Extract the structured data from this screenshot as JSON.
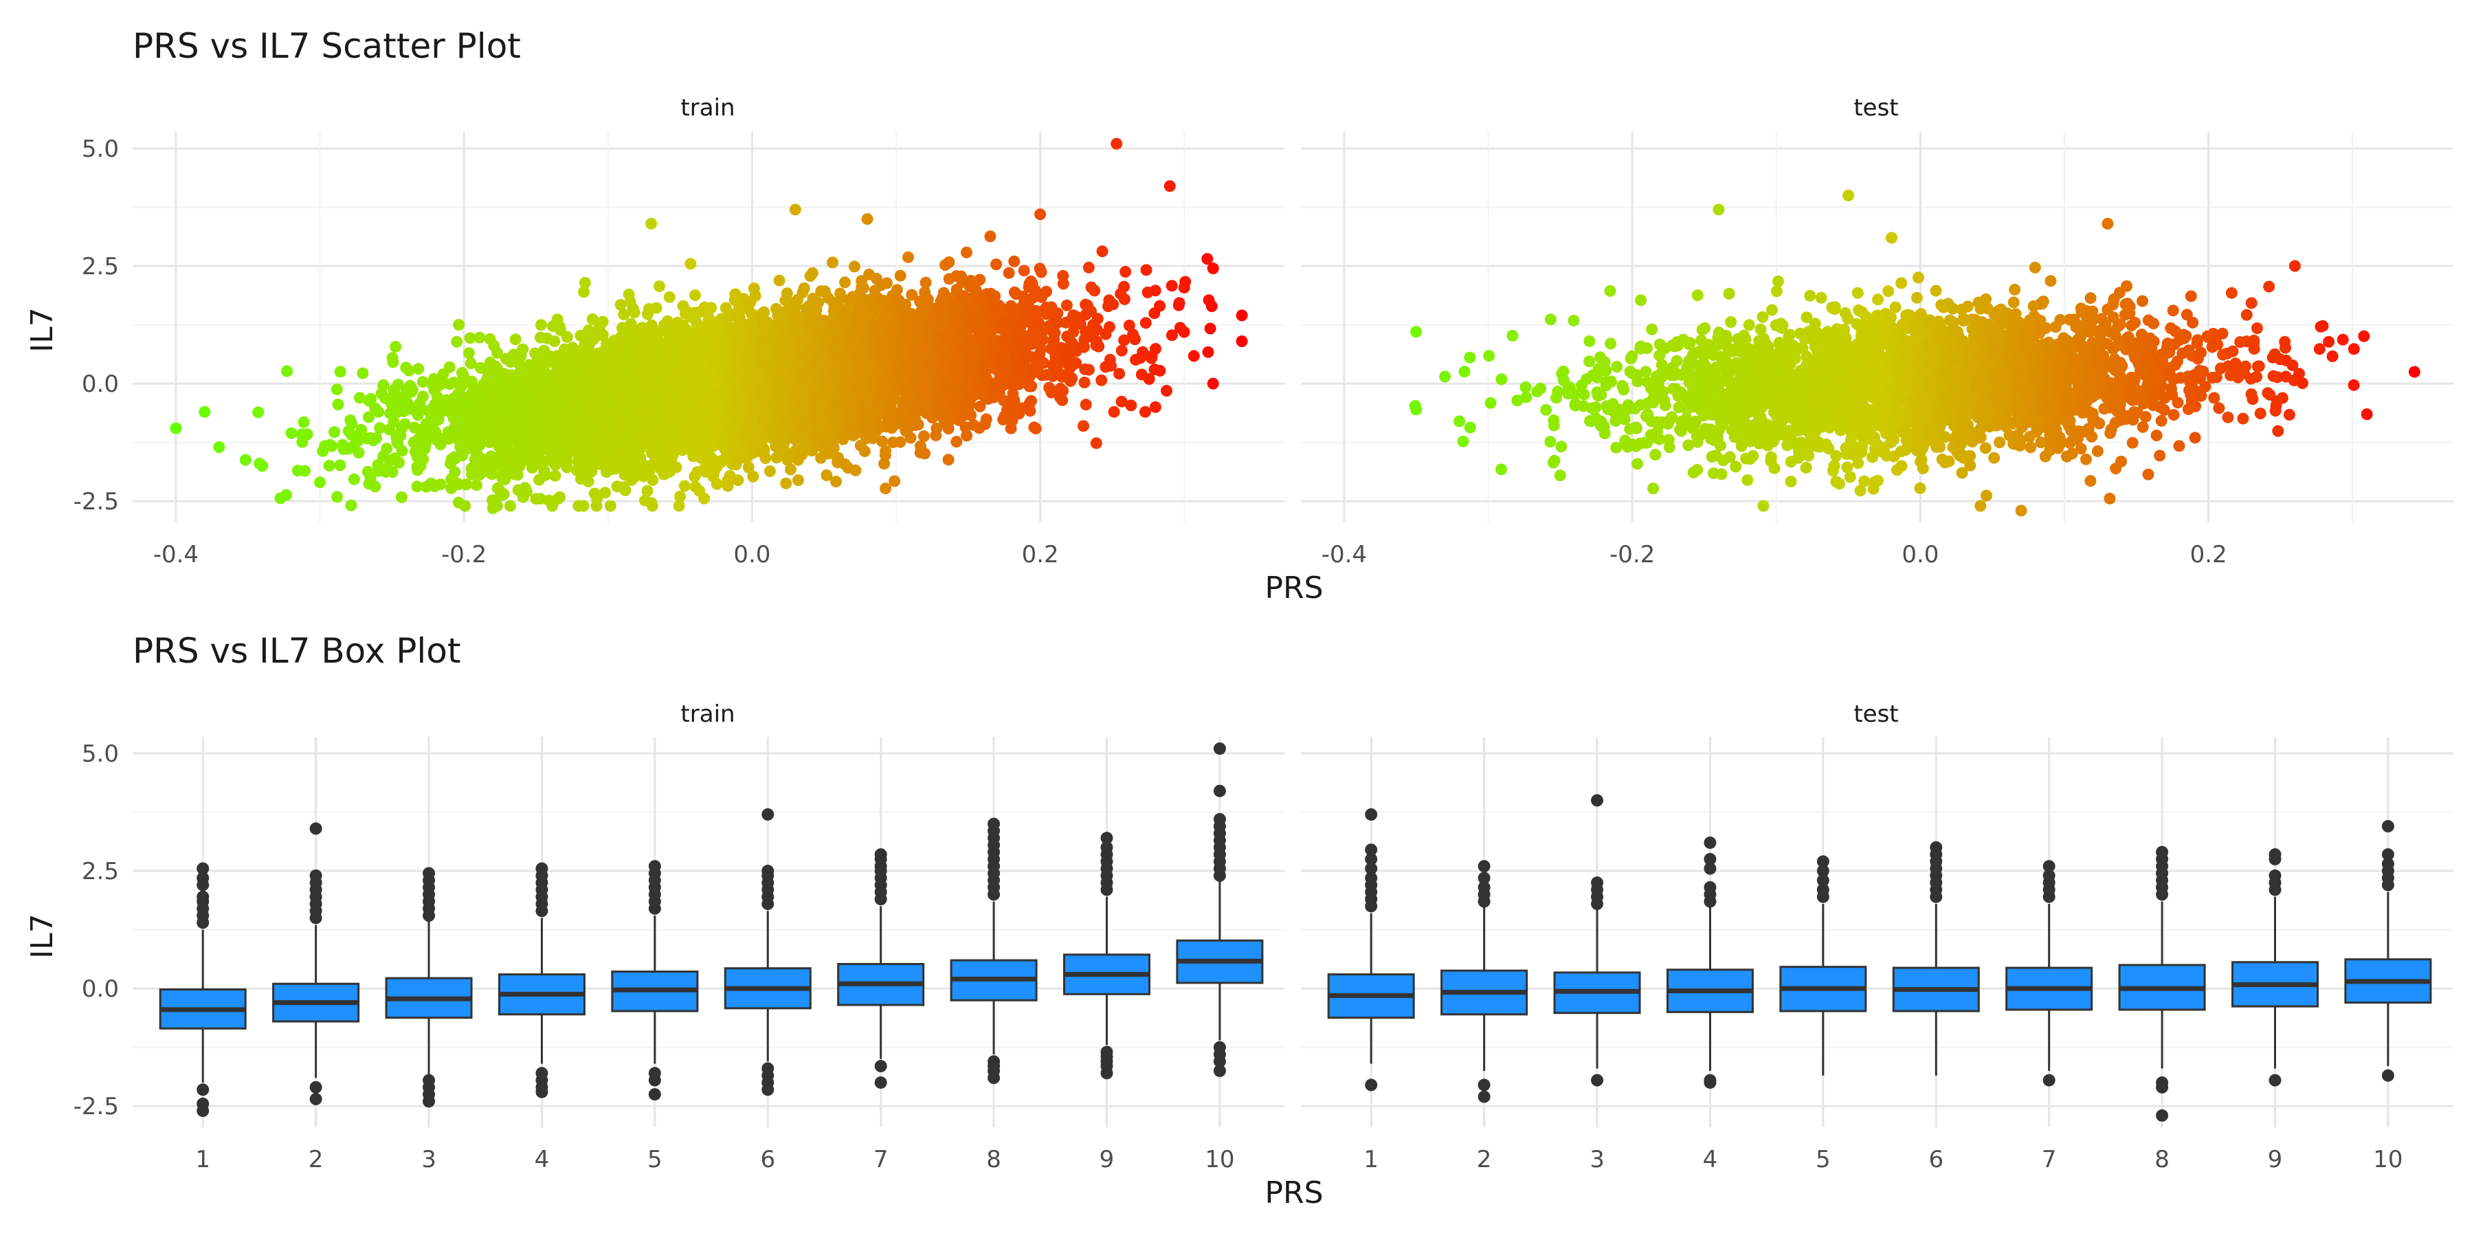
{
  "chart_data": [
    {
      "type": "scatter",
      "title": "PRS vs IL7 Scatter Plot",
      "xlabel": "PRS",
      "ylabel": "IL7",
      "facets": [
        "train",
        "test"
      ],
      "xlim": [
        -0.43,
        0.37
      ],
      "ylim": [
        -2.95,
        5.35
      ],
      "x_ticks": [
        -0.4,
        -0.2,
        0.0,
        0.2
      ],
      "x_tick_labels": [
        "-0.4",
        "-0.2",
        "0.0",
        "0.2"
      ],
      "y_ticks": [
        -2.5,
        0.0,
        2.5,
        5.0
      ],
      "y_tick_labels": [
        "-2.5",
        "0.0",
        "2.5",
        "5.0"
      ],
      "grid": true,
      "legend": "none",
      "color_scale": {
        "low": "#66ff00",
        "mid": "#cccc00",
        "high": "#ff0000",
        "mapped_to": "PRS"
      },
      "series": [
        {
          "name": "train",
          "n_points_approx": 8000,
          "trend": {
            "slope": 4.0,
            "intercept": 0.0,
            "residual_sd": 0.72
          },
          "x_mean": 0.0,
          "x_sd": 0.1,
          "outliers": [
            {
              "x": -0.4,
              "y": -0.95
            },
            {
              "x": -0.38,
              "y": -0.6
            },
            {
              "x": -0.37,
              "y": -1.35
            },
            {
              "x": -0.34,
              "y": -1.75
            },
            {
              "x": -0.3,
              "y": -2.1
            },
            {
              "x": -0.18,
              "y": -2.65
            },
            {
              "x": -0.15,
              "y": -2.45
            },
            {
              "x": -0.05,
              "y": -2.4
            },
            {
              "x": -0.07,
              "y": 3.4
            },
            {
              "x": 0.03,
              "y": 3.7
            },
            {
              "x": 0.08,
              "y": 3.5
            },
            {
              "x": 0.2,
              "y": 3.6
            },
            {
              "x": 0.253,
              "y": 5.1
            },
            {
              "x": 0.29,
              "y": 4.2
            },
            {
              "x": 0.32,
              "y": 2.45
            },
            {
              "x": 0.34,
              "y": 1.45
            },
            {
              "x": 0.34,
              "y": 0.9
            },
            {
              "x": 0.32,
              "y": -0.0
            },
            {
              "x": 0.28,
              "y": -0.5
            },
            {
              "x": 0.23,
              "y": -0.9
            }
          ]
        },
        {
          "name": "test",
          "n_points_approx": 3000,
          "trend": {
            "slope": 1.5,
            "intercept": 0.0,
            "residual_sd": 0.72
          },
          "x_mean": 0.0,
          "x_sd": 0.1,
          "outliers": [
            {
              "x": -0.35,
              "y": 1.1
            },
            {
              "x": -0.35,
              "y": -0.55
            },
            {
              "x": -0.33,
              "y": 0.15
            },
            {
              "x": -0.32,
              "y": -0.8
            },
            {
              "x": -0.14,
              "y": 3.7
            },
            {
              "x": -0.05,
              "y": 4.0
            },
            {
              "x": -0.02,
              "y": 3.1
            },
            {
              "x": 0.13,
              "y": 3.4
            },
            {
              "x": 0.26,
              "y": 2.5
            },
            {
              "x": 0.343,
              "y": 0.25
            },
            {
              "x": 0.31,
              "y": -0.65
            },
            {
              "x": 0.07,
              "y": -2.7
            },
            {
              "x": -0.12,
              "y": -2.05
            },
            {
              "x": -0.25,
              "y": -1.95
            }
          ]
        }
      ]
    },
    {
      "type": "box",
      "title": "PRS vs IL7 Box Plot",
      "xlabel": "PRS",
      "ylabel": "IL7",
      "facets": [
        "train",
        "test"
      ],
      "categories": [
        "1",
        "2",
        "3",
        "4",
        "5",
        "6",
        "7",
        "8",
        "9",
        "10"
      ],
      "ylim": [
        -2.95,
        5.35
      ],
      "y_ticks": [
        -2.5,
        0.0,
        2.5,
        5.0
      ],
      "y_tick_labels": [
        "-2.5",
        "0.0",
        "2.5",
        "5.0"
      ],
      "grid": true,
      "fill_color": "#1e90ff",
      "legend": "none",
      "series": [
        {
          "name": "train",
          "boxes": [
            {
              "category": "1",
              "whisker_low": -2.0,
              "q1": -0.85,
              "median": -0.45,
              "q3": -0.02,
              "whisker_high": 1.25,
              "outliers": [
                -2.15,
                -2.45,
                -2.6,
                1.4,
                1.55,
                1.7,
                1.85,
                1.95,
                2.2,
                2.35,
                2.55
              ]
            },
            {
              "category": "2",
              "whisker_low": -1.9,
              "q1": -0.7,
              "median": -0.3,
              "q3": 0.1,
              "whisker_high": 1.35,
              "outliers": [
                -2.1,
                -2.35,
                1.5,
                1.65,
                1.8,
                1.95,
                2.1,
                2.25,
                2.4,
                3.4
              ]
            },
            {
              "category": "3",
              "whisker_low": -1.85,
              "q1": -0.62,
              "median": -0.22,
              "q3": 0.22,
              "whisker_high": 1.45,
              "outliers": [
                -1.95,
                -2.1,
                -2.25,
                -2.4,
                1.55,
                1.7,
                1.85,
                2.0,
                2.15,
                2.3,
                2.45
              ]
            },
            {
              "category": "4",
              "whisker_low": -1.6,
              "q1": -0.55,
              "median": -0.12,
              "q3": 0.3,
              "whisker_high": 1.5,
              "outliers": [
                -1.8,
                -1.95,
                -2.1,
                -2.2,
                1.65,
                1.8,
                1.95,
                2.1,
                2.25,
                2.4,
                2.55
              ]
            },
            {
              "category": "5",
              "whisker_low": -1.6,
              "q1": -0.48,
              "median": -0.03,
              "q3": 0.36,
              "whisker_high": 1.55,
              "outliers": [
                -1.8,
                -1.95,
                -2.25,
                1.7,
                1.85,
                2.0,
                2.15,
                2.3,
                2.45,
                2.6
              ]
            },
            {
              "category": "6",
              "whisker_low": -1.55,
              "q1": -0.42,
              "median": 0.0,
              "q3": 0.43,
              "whisker_high": 1.65,
              "outliers": [
                -1.7,
                -1.85,
                -2.0,
                -2.15,
                1.8,
                1.95,
                2.1,
                2.25,
                2.4,
                2.5,
                3.7
              ]
            },
            {
              "category": "7",
              "whisker_low": -1.5,
              "q1": -0.35,
              "median": 0.1,
              "q3": 0.52,
              "whisker_high": 1.75,
              "outliers": [
                -1.65,
                -2.0,
                1.9,
                2.05,
                2.2,
                2.35,
                2.5,
                2.6,
                2.75,
                2.85
              ]
            },
            {
              "category": "8",
              "whisker_low": -1.4,
              "q1": -0.25,
              "median": 0.2,
              "q3": 0.6,
              "whisker_high": 1.85,
              "outliers": [
                -1.55,
                -1.65,
                -1.75,
                -1.9,
                2.0,
                2.15,
                2.3,
                2.45,
                2.6,
                2.75,
                2.9,
                3.05,
                3.2,
                3.35,
                3.5
              ]
            },
            {
              "category": "9",
              "whisker_low": -1.2,
              "q1": -0.12,
              "median": 0.3,
              "q3": 0.72,
              "whisker_high": 1.95,
              "outliers": [
                -1.35,
                -1.45,
                -1.55,
                -1.65,
                -1.8,
                2.1,
                2.25,
                2.4,
                2.55,
                2.7,
                2.85,
                3.0,
                3.2
              ]
            },
            {
              "category": "10",
              "whisker_low": -1.1,
              "q1": 0.12,
              "median": 0.58,
              "q3": 1.02,
              "whisker_high": 2.3,
              "outliers": [
                -1.25,
                -1.4,
                -1.55,
                -1.75,
                2.4,
                2.55,
                2.7,
                2.85,
                3.0,
                3.15,
                3.3,
                3.45,
                3.6,
                4.2,
                5.1
              ]
            }
          ]
        },
        {
          "name": "test",
          "boxes": [
            {
              "category": "1",
              "whisker_low": -1.6,
              "q1": -0.62,
              "median": -0.15,
              "q3": 0.3,
              "whisker_high": 1.6,
              "outliers": [
                -2.05,
                1.75,
                1.9,
                2.05,
                2.2,
                2.35,
                2.55,
                2.75,
                2.95,
                3.7
              ]
            },
            {
              "category": "2",
              "whisker_low": -1.75,
              "q1": -0.55,
              "median": -0.08,
              "q3": 0.38,
              "whisker_high": 1.75,
              "outliers": [
                -2.05,
                -2.3,
                1.85,
                2.0,
                2.15,
                2.35,
                2.6
              ]
            },
            {
              "category": "3",
              "whisker_low": -1.7,
              "q1": -0.52,
              "median": -0.06,
              "q3": 0.34,
              "whisker_high": 1.7,
              "outliers": [
                -1.95,
                1.8,
                1.95,
                2.1,
                2.25,
                4.0
              ]
            },
            {
              "category": "4",
              "whisker_low": -1.75,
              "q1": -0.5,
              "median": -0.05,
              "q3": 0.4,
              "whisker_high": 1.75,
              "outliers": [
                -1.95,
                -2.0,
                1.85,
                2.0,
                2.15,
                2.55,
                2.75,
                3.1
              ]
            },
            {
              "category": "5",
              "whisker_low": -1.85,
              "q1": -0.48,
              "median": 0.0,
              "q3": 0.46,
              "whisker_high": 1.8,
              "outliers": [
                1.95,
                2.1,
                2.3,
                2.5,
                2.7
              ]
            },
            {
              "category": "6",
              "whisker_low": -1.85,
              "q1": -0.48,
              "median": -0.02,
              "q3": 0.44,
              "whisker_high": 1.8,
              "outliers": [
                1.95,
                2.1,
                2.25,
                2.4,
                2.55,
                2.7,
                2.85,
                3.0
              ]
            },
            {
              "category": "7",
              "whisker_low": -1.75,
              "q1": -0.45,
              "median": 0.0,
              "q3": 0.44,
              "whisker_high": 1.8,
              "outliers": [
                -1.95,
                1.95,
                2.1,
                2.25,
                2.4,
                2.6
              ]
            },
            {
              "category": "8",
              "whisker_low": -1.7,
              "q1": -0.45,
              "median": 0.0,
              "q3": 0.5,
              "whisker_high": 1.85,
              "outliers": [
                -2.0,
                -2.1,
                -2.7,
                2.0,
                2.15,
                2.3,
                2.45,
                2.6,
                2.75,
                2.9
              ]
            },
            {
              "category": "9",
              "whisker_low": -1.7,
              "q1": -0.38,
              "median": 0.08,
              "q3": 0.56,
              "whisker_high": 1.95,
              "outliers": [
                -1.95,
                2.1,
                2.25,
                2.4,
                2.75,
                2.85
              ]
            },
            {
              "category": "10",
              "whisker_low": -1.65,
              "q1": -0.3,
              "median": 0.15,
              "q3": 0.62,
              "whisker_high": 2.05,
              "outliers": [
                -1.85,
                2.2,
                2.35,
                2.5,
                2.65,
                2.85,
                3.45
              ]
            }
          ]
        }
      ]
    }
  ]
}
